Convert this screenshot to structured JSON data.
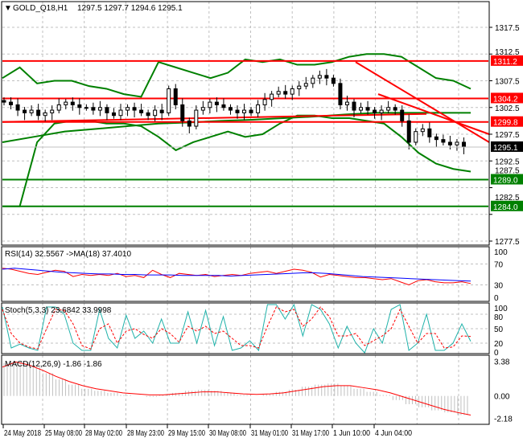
{
  "header": {
    "arrow": "▼",
    "symbol": "GOLD_Q18,H1",
    "ohlc": "1297.5 1297.7 1294.6 1295.1"
  },
  "colors": {
    "up": "#000000",
    "down": "#000000",
    "level_red": "#ff0000",
    "level_green": "#008000",
    "band": "#008000",
    "rsi": "#ff0000",
    "rsi_ma": "#0000ff",
    "stoch_main": "#20b2aa",
    "stoch_signal": "#ff0000",
    "macd_hist": "#c0c0c0",
    "macd_signal": "#ff0000"
  },
  "chart_data": [
    {
      "type": "candlestick",
      "title": "GOLD_Q18,H1",
      "ylim": [
        1275,
        1320
      ],
      "yticks": [
        "1317.5",
        "1312.5",
        "1307.5",
        "1302.5",
        "1297.5",
        "1292.5",
        "1287.5",
        "1282.5",
        "1277.5"
      ],
      "ytick_values": [
        1317.5,
        1312.5,
        1307.5,
        1302.5,
        1297.5,
        1292.5,
        1287.5,
        1282.5,
        1277.5
      ],
      "levels": [
        {
          "value": 1311.2,
          "label": "1311.2",
          "color": "red"
        },
        {
          "value": 1304.2,
          "label": "1304.2",
          "color": "red"
        },
        {
          "value": 1299.8,
          "label": "1299.8",
          "color": "red"
        },
        {
          "value": 1289.0,
          "label": "1289.0",
          "color": "green"
        },
        {
          "value": 1284.0,
          "label": "1284.0",
          "color": "green"
        }
      ],
      "current_price": {
        "value": 1295.1,
        "label": "1295.1"
      },
      "closes": [
        1303.5,
        1303,
        1302,
        1301.5,
        1302,
        1301,
        1301.5,
        1302,
        1303,
        1303.5,
        1303,
        1302.5,
        1302.5,
        1302,
        1302.5,
        1301.5,
        1301,
        1302,
        1302.5,
        1302,
        1301.5,
        1301,
        1302,
        1301.5,
        1306,
        1303,
        1300,
        1299,
        1302,
        1302.5,
        1303.5,
        1303,
        1302.5,
        1302,
        1301.5,
        1302,
        1301.5,
        1303,
        1304,
        1305,
        1305.5,
        1305,
        1306,
        1306.5,
        1307,
        1308,
        1308.5,
        1308,
        1307,
        1303,
        1303.5,
        1302,
        1302.5,
        1302,
        1301.5,
        1302,
        1302.5,
        1302,
        1300,
        1296,
        1298,
        1298.5,
        1297,
        1296.5,
        1296,
        1295.5,
        1296,
        1295.1
      ],
      "bb_upper": [
        1308,
        1310,
        1307,
        1307.5,
        1307.5,
        1306.5,
        1306,
        1305,
        1304.5,
        1311,
        1310,
        1309,
        1308,
        1309,
        1311.5,
        1311,
        1311.5,
        1310.5,
        1310.5,
        1311,
        1312,
        1312.5,
        1312.5,
        1312,
        1310,
        1308,
        1307.5,
        1306
      ],
      "bb_lower": [
        1284,
        1284,
        1296,
        1299.5,
        1300,
        1300,
        1299.5,
        1299.5,
        1299,
        1297,
        1294.5,
        1296,
        1297,
        1298,
        1297,
        1297.5,
        1299.5,
        1301,
        1301,
        1300.5,
        1300.5,
        1300,
        1299.5,
        1297,
        1294,
        1292,
        1291,
        1290.5
      ],
      "ma_slow": [
        1296,
        1297,
        1298,
        1298.5,
        1299,
        1299.5,
        1299.7,
        1300,
        1300.2,
        1300.5,
        1300.8,
        1301.2,
        1301.5,
        1301.5,
        1301.5,
        1301.5
      ],
      "trendlines": [
        {
          "from": [
            1300,
            1299.8
          ],
          "to": [
            1301.8,
            1300.5
          ]
        },
        {
          "from": [
            1301.5,
            1300.3
          ],
          "to": [
            1311,
            1296
          ]
        },
        {
          "from": [
            1303,
            1302
          ],
          "to": [
            1300,
            1296
          ]
        }
      ]
    },
    {
      "type": "line",
      "title": "RSI(14) 32.5567  ->MA(18) 37.4010",
      "ylim": [
        0,
        100
      ],
      "yticks": [
        "100",
        "70",
        "30",
        "0"
      ],
      "ytick_values": [
        100,
        70,
        30,
        0
      ],
      "rsi": [
        62,
        60,
        56,
        52,
        50,
        54,
        58,
        56,
        46,
        50,
        48,
        50,
        48,
        52,
        46,
        48,
        44,
        58,
        50,
        44,
        52,
        50,
        48,
        50,
        46,
        48,
        50,
        48,
        52,
        54,
        56,
        52,
        56,
        60,
        58,
        54,
        45,
        50,
        48,
        46,
        44,
        44,
        42,
        40,
        42,
        36,
        30,
        38,
        40,
        36,
        34,
        34,
        36,
        32.6
      ],
      "rsi_ma": [
        60,
        62,
        60,
        58,
        56,
        54,
        53,
        52,
        51,
        51,
        50,
        50,
        49,
        49,
        49,
        48,
        48,
        48,
        48,
        47,
        48,
        49,
        50,
        51,
        52,
        53,
        53,
        52,
        50,
        48,
        46,
        45,
        44,
        43,
        42,
        41,
        40,
        39,
        38,
        37.4
      ]
    },
    {
      "type": "line",
      "title": "Stoch(5,3,3) 23.6842 33.9998",
      "ylim": [
        0,
        100
      ],
      "yticks": [
        "100",
        "80",
        "50",
        "20",
        "0"
      ],
      "ytick_values": [
        100,
        80,
        50,
        20,
        0
      ],
      "main": [
        95,
        10,
        18,
        10,
        5,
        95,
        95,
        80,
        20,
        5,
        5,
        90,
        30,
        10,
        78,
        30,
        45,
        20,
        70,
        20,
        20,
        85,
        20,
        88,
        15,
        75,
        5,
        10,
        25,
        5,
        100,
        100,
        70,
        100,
        35,
        100,
        90,
        60,
        10,
        55,
        20,
        0,
        50,
        20,
        90,
        100,
        5,
        20,
        80,
        5,
        5,
        20,
        60,
        23.7
      ],
      "signal": [
        90,
        40,
        20,
        12,
        8,
        50,
        90,
        88,
        60,
        15,
        8,
        50,
        60,
        20,
        45,
        50,
        38,
        30,
        50,
        40,
        22,
        55,
        45,
        55,
        40,
        45,
        30,
        15,
        15,
        10,
        55,
        95,
        85,
        90,
        55,
        70,
        95,
        75,
        35,
        35,
        40,
        15,
        25,
        35,
        50,
        90,
        55,
        20,
        40,
        40,
        10,
        12,
        35,
        34
      ]
    },
    {
      "type": "bar",
      "title": "MACD(12,26,9) -1.86 -1.86",
      "ylim": [
        -2.6,
        3.8
      ],
      "yticks": [
        "3.38",
        "0.00",
        "-2.18"
      ],
      "ytick_values": [
        3.38,
        0,
        -2.18
      ],
      "hist": [
        3.2,
        3.3,
        2.8,
        2.2,
        1.6,
        1.1,
        0.7,
        0.5,
        0.3,
        0.1,
        0.0,
        -0.1,
        0.1,
        0.3,
        0.5,
        0.6,
        0.5,
        0.3,
        0.1,
        0.0,
        0.2,
        0.4,
        0.6,
        0.9,
        1.1,
        1.2,
        1.0,
        0.7,
        0.4,
        0.1,
        -0.4,
        -0.8,
        -1.1,
        -1.4,
        -1.6,
        -1.86
      ],
      "signal": [
        2.8,
        3.3,
        3.0,
        2.5,
        1.9,
        1.4,
        1.0,
        0.7,
        0.5,
        0.3,
        0.2,
        0.1,
        0.1,
        0.2,
        0.3,
        0.4,
        0.4,
        0.3,
        0.2,
        0.15,
        0.2,
        0.3,
        0.5,
        0.7,
        0.9,
        1.0,
        1.0,
        0.8,
        0.6,
        0.3,
        -0.1,
        -0.5,
        -0.9,
        -1.3,
        -1.6,
        -1.86
      ]
    },
    {
      "type": "time_axis",
      "labels": [
        "24 May 2018",
        "25 May 08:00",
        "28 May 02:00",
        "28 May 23:00",
        "29 May 15:00",
        "30 May 08:00",
        "31 May 01:00",
        "31 May 17:00",
        "1 Jun 10:00",
        "4 Jun 04:00"
      ]
    }
  ]
}
